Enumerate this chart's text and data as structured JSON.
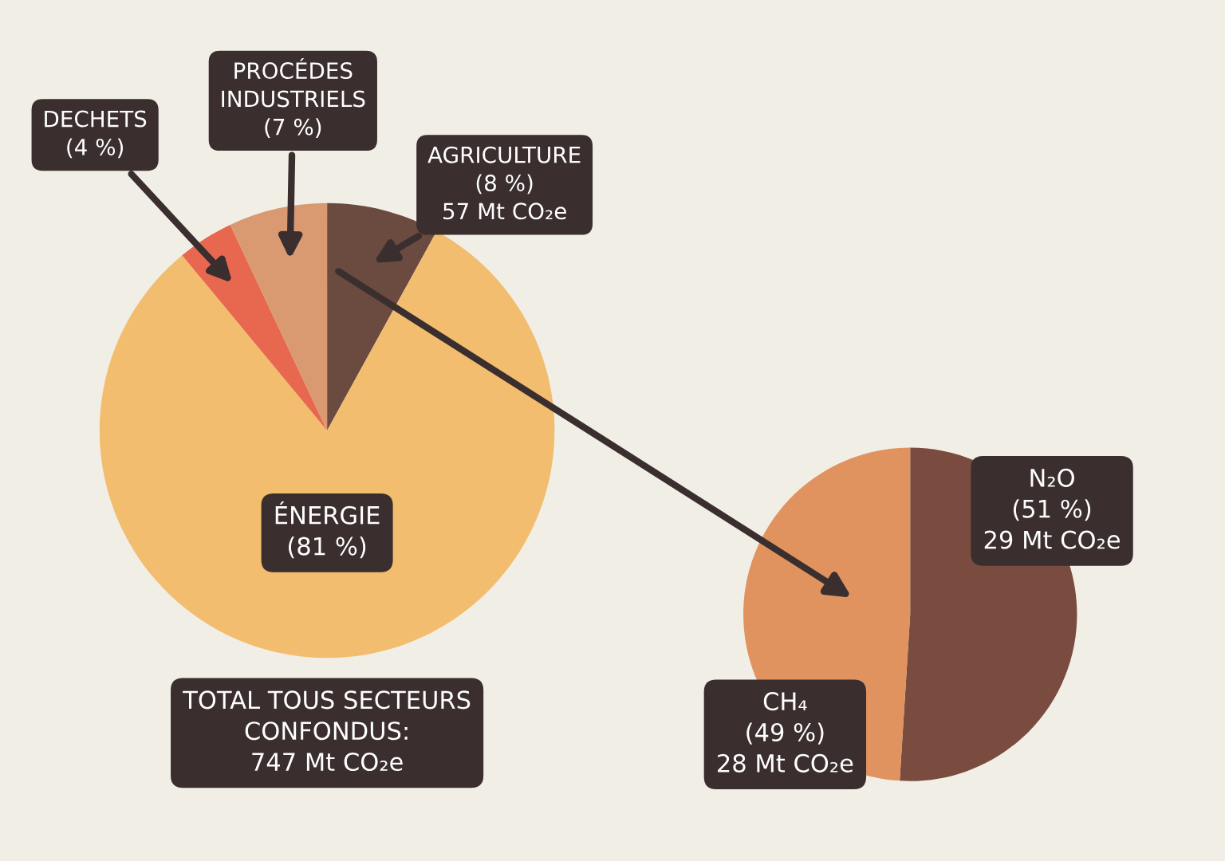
{
  "chart_data": [
    {
      "type": "pie",
      "categories": [
        "AGRICULTURE",
        "ÉNERGIE",
        "DECHETS",
        "PROCÉDES\nINDUSTRIELS"
      ],
      "values": [
        8,
        81,
        4,
        7
      ],
      "colors": [
        "#6b4a40",
        "#f2bd6e",
        "#e8684f",
        "#d99a72"
      ],
      "value_labels": [
        "(8 %)\n57 Mt CO₂e",
        "(81 %)",
        "(4 %)",
        "(7 %)"
      ],
      "annotations": [
        "TOTAL TOUS SECTEURS\nCONFONDUS:\n747 Mt CO₂e"
      ]
    },
    {
      "type": "pie",
      "categories": [
        "N₂O",
        "CH₄"
      ],
      "values": [
        51,
        49
      ],
      "colors": [
        "#7a4c40",
        "#e0935f"
      ],
      "value_labels": [
        "(51 %)\n29 Mt CO₂e",
        "(49 %)\n28 Mt CO₂e"
      ]
    }
  ]
}
